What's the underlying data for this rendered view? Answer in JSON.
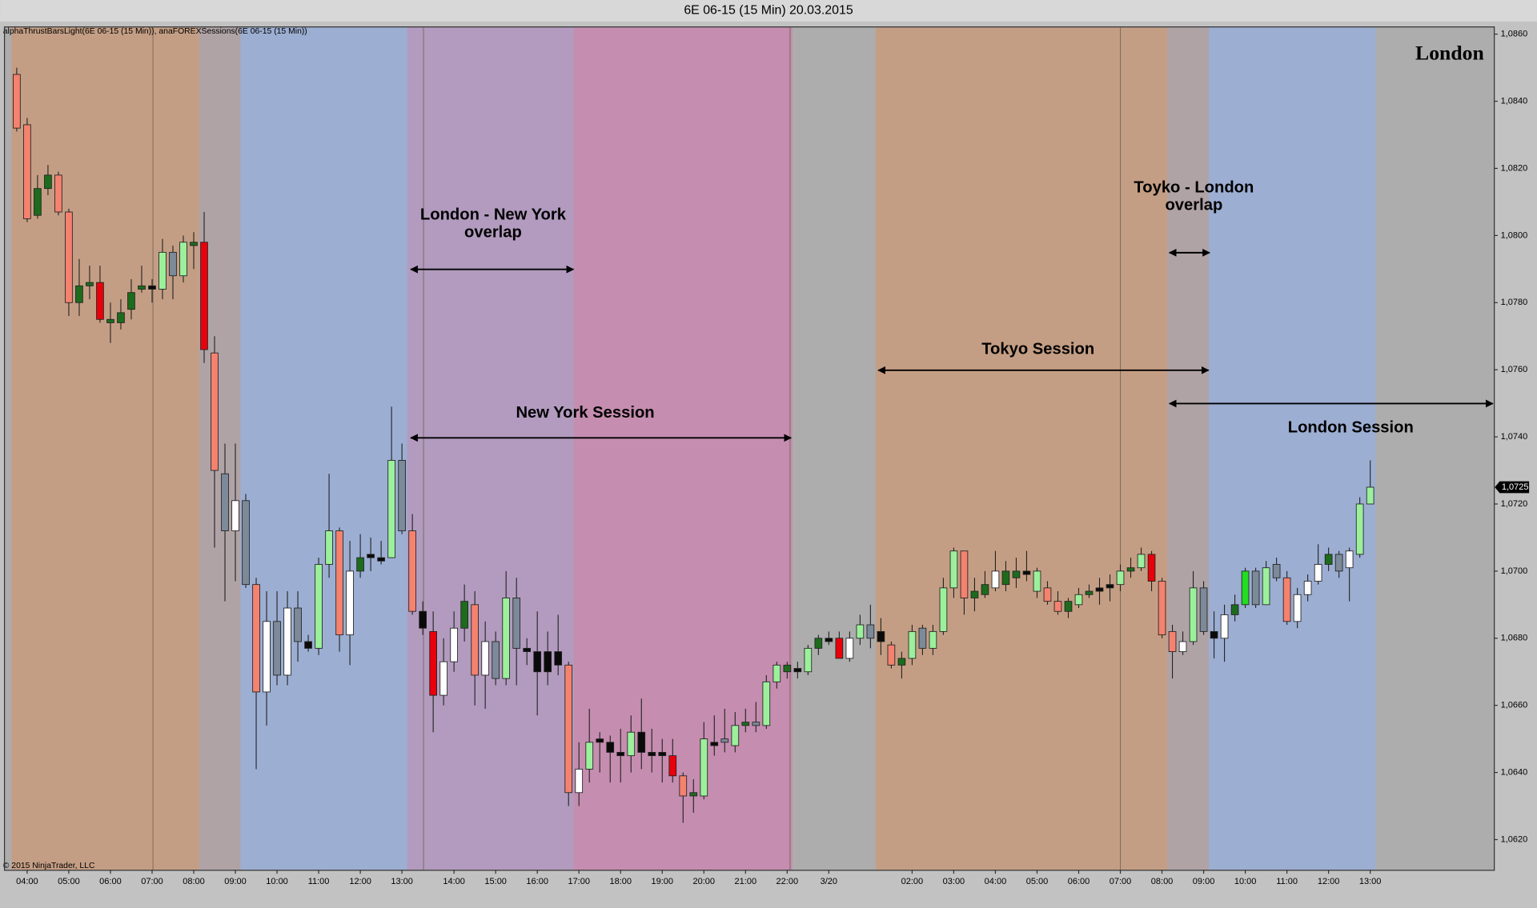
{
  "chart_data": {
    "type": "candlestick",
    "title": "6E 06-15 (15 Min)  20.03.2015",
    "indicators": "alphaThrustBarsLight(6E 06-15 (15 Min)), anaFOREXSessions(6E 06-15 (15 Min))",
    "copyright": "© 2015 NinjaTrader, LLC",
    "session_name": "London",
    "annotations": [
      [
        "London - New York",
        "overlap"
      ],
      [
        "New York Session"
      ],
      [
        "Tokyo Session"
      ],
      [
        "Toyko - London",
        "overlap"
      ],
      [
        "London Session"
      ]
    ],
    "categories": [
      null,
      "04:00",
      null,
      null,
      null,
      "05:00",
      null,
      null,
      null,
      "06:00",
      null,
      null,
      null,
      "07:00",
      null,
      null,
      null,
      "08:00",
      null,
      null,
      null,
      "09:00",
      null,
      null,
      null,
      "10:00",
      null,
      null,
      null,
      "11:00",
      null,
      null,
      null,
      "12:00",
      null,
      null,
      null,
      "13:00",
      null,
      null,
      null,
      null,
      "14:00",
      null,
      null,
      null,
      "15:00",
      null,
      null,
      null,
      "16:00",
      null,
      null,
      null,
      "17:00",
      null,
      null,
      null,
      "18:00",
      null,
      null,
      null,
      "19:00",
      null,
      null,
      null,
      "20:00",
      null,
      null,
      null,
      "21:00",
      null,
      null,
      null,
      "22:00",
      null,
      null,
      null,
      "3/20",
      null,
      null,
      null,
      null,
      null,
      null,
      null,
      "02:00",
      null,
      null,
      null,
      "03:00",
      null,
      null,
      null,
      "04:00",
      null,
      null,
      null,
      "05:00",
      null,
      null,
      null,
      "06:00",
      null,
      null,
      null,
      "07:00",
      null,
      null,
      null,
      "08:00",
      null,
      null,
      null,
      "09:00",
      null,
      null,
      null,
      "10:00",
      null,
      null,
      null,
      "11:00",
      null,
      null,
      null,
      "12:00",
      null,
      null,
      null,
      "13:00"
    ],
    "open": [
      1.0848,
      1.0833,
      1.0806,
      1.0814,
      1.0818,
      1.0807,
      1.078,
      1.0785,
      1.0786,
      1.0774,
      1.0774,
      1.0778,
      1.0784,
      1.0785,
      1.0784,
      1.0788,
      1.0788,
      1.0797,
      1.0798,
      1.0765,
      1.0729,
      1.0712,
      1.0721,
      1.0696,
      1.0664,
      1.0685,
      1.0669,
      1.0689,
      1.0677,
      1.0677,
      1.0702,
      1.0712,
      1.0681,
      1.07,
      1.0705,
      1.0703,
      1.0704,
      1.0733,
      1.0712,
      1.0688,
      1.0682,
      1.0663,
      1.0673,
      1.0683,
      1.069,
      1.0669,
      1.0679,
      1.0668,
      1.0692,
      1.0677,
      1.0676,
      1.067,
      1.0676,
      1.0672,
      1.0634,
      1.0641,
      1.0649,
      1.0649,
      1.0646,
      1.0645,
      1.0652,
      1.0646,
      1.0646,
      1.0645,
      1.0639,
      1.0633,
      1.0633,
      1.0649,
      1.0649,
      1.0648,
      1.0654,
      1.0655,
      1.0654,
      1.0667,
      1.067,
      1.067,
      1.067,
      1.0677,
      1.0679,
      1.068,
      1.0674,
      1.068,
      1.0684,
      1.0682,
      1.0678,
      1.0672,
      1.0674,
      1.0683,
      1.0677,
      1.0682,
      1.0695,
      1.0706,
      1.0692,
      1.0693,
      1.0695,
      1.0696,
      1.0698,
      1.07,
      1.0694,
      1.0695,
      1.0691,
      1.0688,
      1.069,
      1.0693,
      1.0694,
      1.0695,
      1.0696,
      1.07,
      1.0701,
      1.0705,
      1.0697,
      1.0682,
      1.0676,
      1.0679,
      1.0695,
      1.0682,
      1.068,
      1.0687,
      1.069,
      1.07,
      1.069,
      1.0702,
      1.0698,
      1.0685,
      1.0693,
      1.0697,
      1.0702,
      1.0705,
      1.0701,
      1.0705,
      1.072
    ],
    "high": [
      1.085,
      1.0835,
      1.0818,
      1.0821,
      1.0819,
      1.0808,
      1.0793,
      1.0791,
      1.0791,
      1.078,
      1.0781,
      1.0787,
      1.0791,
      1.0787,
      1.0799,
      1.0797,
      1.08,
      1.0801,
      1.0807,
      1.077,
      1.0738,
      1.0738,
      1.0723,
      1.0698,
      1.0694,
      1.0694,
      1.0694,
      1.0694,
      1.0681,
      1.0704,
      1.0729,
      1.0713,
      1.0709,
      1.0711,
      1.071,
      1.0709,
      1.0749,
      1.0738,
      1.0717,
      1.0691,
      1.0688,
      1.068,
      1.0688,
      1.0696,
      1.0694,
      1.0685,
      1.0682,
      1.07,
      1.0698,
      1.068,
      1.0688,
      1.0682,
      1.0687,
      1.0673,
      1.0649,
      1.0659,
      1.0652,
      1.0651,
      1.0653,
      1.0657,
      1.0662,
      1.0653,
      1.065,
      1.065,
      1.064,
      1.0638,
      1.0655,
      1.0657,
      1.0659,
      1.0658,
      1.0659,
      1.0661,
      1.0669,
      1.0673,
      1.0673,
      1.0673,
      1.0678,
      1.0681,
      1.0682,
      1.0682,
      1.0682,
      1.0687,
      1.069,
      1.0686,
      1.0679,
      1.0676,
      1.0684,
      1.0684,
      1.0684,
      1.0698,
      1.0707,
      1.0706,
      1.0698,
      1.07,
      1.0706,
      1.0703,
      1.0704,
      1.0706,
      1.0701,
      1.0697,
      1.0694,
      1.0692,
      1.0695,
      1.0696,
      1.0698,
      1.0699,
      1.0702,
      1.0704,
      1.0707,
      1.0706,
      1.0698,
      1.0684,
      1.0682,
      1.07,
      1.0697,
      1.0688,
      1.069,
      1.0693,
      1.0701,
      1.0701,
      1.0703,
      1.0704,
      1.07,
      1.0695,
      1.0699,
      1.0708,
      1.0707,
      1.0706,
      1.0707,
      1.0722,
      1.0733
    ],
    "low": [
      1.0831,
      1.0804,
      1.0805,
      1.0812,
      1.0806,
      1.0776,
      1.0776,
      1.0781,
      1.0774,
      1.0768,
      1.0772,
      1.0775,
      1.0783,
      1.078,
      1.0781,
      1.0781,
      1.0786,
      1.079,
      1.0762,
      1.0707,
      1.0691,
      1.0697,
      1.0695,
      1.0641,
      1.0654,
      1.0666,
      1.0666,
      1.0673,
      1.0676,
      1.0675,
      1.0698,
      1.0676,
      1.0672,
      1.0698,
      1.07,
      1.0702,
      1.0704,
      1.0711,
      1.0687,
      1.0681,
      1.0652,
      1.066,
      1.067,
      1.0679,
      1.066,
      1.0659,
      1.0666,
      1.0666,
      1.0666,
      1.0672,
      1.0657,
      1.0666,
      1.0669,
      1.063,
      1.063,
      1.0637,
      1.064,
      1.0637,
      1.0637,
      1.064,
      1.0641,
      1.064,
      1.0637,
      1.0637,
      1.0625,
      1.0628,
      1.0632,
      1.0645,
      1.0646,
      1.0646,
      1.0652,
      1.0652,
      1.0653,
      1.0665,
      1.0668,
      1.0668,
      1.0669,
      1.0675,
      1.0678,
      1.0674,
      1.0673,
      1.0678,
      1.0677,
      1.0675,
      1.0671,
      1.0668,
      1.0672,
      1.0675,
      1.0675,
      1.0681,
      1.0692,
      1.0687,
      1.0688,
      1.0692,
      1.0694,
      1.0694,
      1.0695,
      1.0697,
      1.0692,
      1.069,
      1.0687,
      1.0686,
      1.0689,
      1.0692,
      1.069,
      1.0691,
      1.0694,
      1.0698,
      1.07,
      1.0694,
      1.068,
      1.0668,
      1.0675,
      1.0678,
      1.0681,
      1.0674,
      1.0673,
      1.0685,
      1.0689,
      1.0689,
      1.069,
      1.0697,
      1.0684,
      1.0683,
      1.0691,
      1.0696,
      1.07,
      1.0698,
      1.0691,
      1.0704,
      1.072
    ],
    "close": [
      1.0832,
      1.0805,
      1.0814,
      1.0818,
      1.0807,
      1.078,
      1.0785,
      1.0786,
      1.0775,
      1.0775,
      1.0777,
      1.0783,
      1.0785,
      1.0784,
      1.0795,
      1.0795,
      1.0798,
      1.0798,
      1.0766,
      1.073,
      1.0712,
      1.0721,
      1.0696,
      1.0664,
      1.0685,
      1.0669,
      1.0689,
      1.0679,
      1.0679,
      1.0702,
      1.0712,
      1.0681,
      1.07,
      1.0704,
      1.0704,
      1.0704,
      1.0733,
      1.0712,
      1.0688,
      1.0683,
      1.0663,
      1.0673,
      1.0683,
      1.0691,
      1.0669,
      1.0679,
      1.0668,
      1.0692,
      1.0677,
      1.0676,
      1.067,
      1.0676,
      1.0672,
      1.0634,
      1.0641,
      1.0649,
      1.065,
      1.0646,
      1.0645,
      1.0652,
      1.0646,
      1.0645,
      1.0645,
      1.0639,
      1.0633,
      1.0634,
      1.065,
      1.0648,
      1.065,
      1.0654,
      1.0655,
      1.0654,
      1.0667,
      1.0672,
      1.0672,
      1.0671,
      1.0677,
      1.068,
      1.068,
      1.0674,
      1.068,
      1.0684,
      1.068,
      1.0679,
      1.0672,
      1.0674,
      1.0682,
      1.0677,
      1.0682,
      1.0695,
      1.0706,
      1.0692,
      1.0694,
      1.0696,
      1.07,
      1.07,
      1.07,
      1.0699,
      1.07,
      1.0691,
      1.0688,
      1.0691,
      1.0693,
      1.0694,
      1.0695,
      1.0696,
      1.07,
      1.0701,
      1.0705,
      1.0697,
      1.0681,
      1.0676,
      1.0679,
      1.0695,
      1.0682,
      1.068,
      1.0687,
      1.069,
      1.07,
      1.069,
      1.0701,
      1.0698,
      1.0685,
      1.0693,
      1.0697,
      1.0702,
      1.0705,
      1.07,
      1.0706,
      1.072,
      1.0725
    ],
    "colors": [
      "#f4826f",
      "#f4826f",
      "#1d6b1d",
      "#1d6b1d",
      "#f4826f",
      "#f4826f",
      "#1d6b1d",
      "#1d6b1d",
      "#e8000b",
      "#1d6b1d",
      "#1d6b1d",
      "#1d6b1d",
      "#1d6b1d",
      "#0a0a0a",
      "#9cf09c",
      "#7c8a99",
      "#9cf09c",
      "#1d6b1d",
      "#e8000b",
      "#f4826f",
      "#7c8a99",
      "#ffffff",
      "#7c8a99",
      "#f4826f",
      "#ffffff",
      "#7c8a99",
      "#ffffff",
      "#7c8a99",
      "#0a0a0a",
      "#9cf09c",
      "#9cf09c",
      "#f4826f",
      "#ffffff",
      "#1d6b1d",
      "#0a0a0a",
      "#0a0a0a",
      "#9cf09c",
      "#7c8a99",
      "#f4826f",
      "#0a0a0a",
      "#e8000b",
      "#ffffff",
      "#ffffff",
      "#1d6b1d",
      "#f4826f",
      "#ffffff",
      "#7c8a99",
      "#9cf09c",
      "#7c8a99",
      "#0a0a0a",
      "#0a0a0a",
      "#0a0a0a",
      "#0a0a0a",
      "#f4826f",
      "#ffffff",
      "#9cf09c",
      "#0a0a0a",
      "#0a0a0a",
      "#0a0a0a",
      "#9cf09c",
      "#0a0a0a",
      "#0a0a0a",
      "#0a0a0a",
      "#e8000b",
      "#f4826f",
      "#1d6b1d",
      "#9cf09c",
      "#0a0a0a",
      "#7c8a99",
      "#9cf09c",
      "#1d6b1d",
      "#7c8a99",
      "#9cf09c",
      "#9cf09c",
      "#1d6b1d",
      "#0a0a0a",
      "#9cf09c",
      "#1d6b1d",
      "#0a0a0a",
      "#e8000b",
      "#ffffff",
      "#9cf09c",
      "#7c8a99",
      "#0a0a0a",
      "#f4826f",
      "#1d6b1d",
      "#9cf09c",
      "#7c8a99",
      "#9cf09c",
      "#9cf09c",
      "#9cf09c",
      "#f4826f",
      "#1d6b1d",
      "#1d6b1d",
      "#ffffff",
      "#1d6b1d",
      "#1d6b1d",
      "#0a0a0a",
      "#9cf09c",
      "#f4826f",
      "#f4826f",
      "#1d6b1d",
      "#9cf09c",
      "#1d6b1d",
      "#0a0a0a",
      "#0a0a0a",
      "#9cf09c",
      "#1d6b1d",
      "#9cf09c",
      "#e8000b",
      "#f4826f",
      "#f4826f",
      "#ffffff",
      "#9cf09c",
      "#7c8a99",
      "#0a0a0a",
      "#ffffff",
      "#1d6b1d",
      "#22dd22",
      "#7c8a99",
      "#9cf09c",
      "#7c8a99",
      "#f4826f",
      "#ffffff",
      "#ffffff",
      "#ffffff",
      "#1d6b1d",
      "#7c8a99",
      "#ffffff",
      "#9cf09c",
      "#9cf09c"
    ],
    "sessions": [
      {
        "from": 0,
        "to": 17,
        "color": "#c49e84"
      },
      {
        "from": 18,
        "to": 21,
        "color": "#b0a3a6"
      },
      {
        "from": 22,
        "to": 37,
        "color": "#9caed2"
      },
      {
        "from": 38,
        "to": 53,
        "color": "#b29bbf"
      },
      {
        "from": 54,
        "to": 74,
        "color": "#c58daf"
      },
      {
        "from": 83,
        "to": 110,
        "color": "#c49e84"
      },
      {
        "from": 111,
        "to": 114,
        "color": "#b0a3a6"
      },
      {
        "from": 115,
        "to": 130,
        "color": "#9caed2"
      }
    ],
    "background": "#adadad",
    "ylim": [
      1.0611,
      1.0862
    ],
    "yticks": [
      {
        "value": 1.062,
        "label": "1,0620"
      },
      {
        "value": 1.064,
        "label": "1,0640"
      },
      {
        "value": 1.066,
        "label": "1,0660"
      },
      {
        "value": 1.068,
        "label": "1,0680"
      },
      {
        "value": 1.07,
        "label": "1,0700"
      },
      {
        "value": 1.072,
        "label": "1,0720"
      },
      {
        "value": 1.074,
        "label": "1,0740"
      },
      {
        "value": 1.076,
        "label": "1,0760"
      },
      {
        "value": 1.078,
        "label": "1,0780"
      },
      {
        "value": 1.08,
        "label": "1,0800"
      },
      {
        "value": 1.082,
        "label": "1,0820"
      },
      {
        "value": 1.084,
        "label": "1,0840"
      },
      {
        "value": 1.086,
        "label": "1,0860"
      }
    ],
    "last_price": {
      "value": 1.0725,
      "label": "1,0725"
    },
    "grid": false
  }
}
